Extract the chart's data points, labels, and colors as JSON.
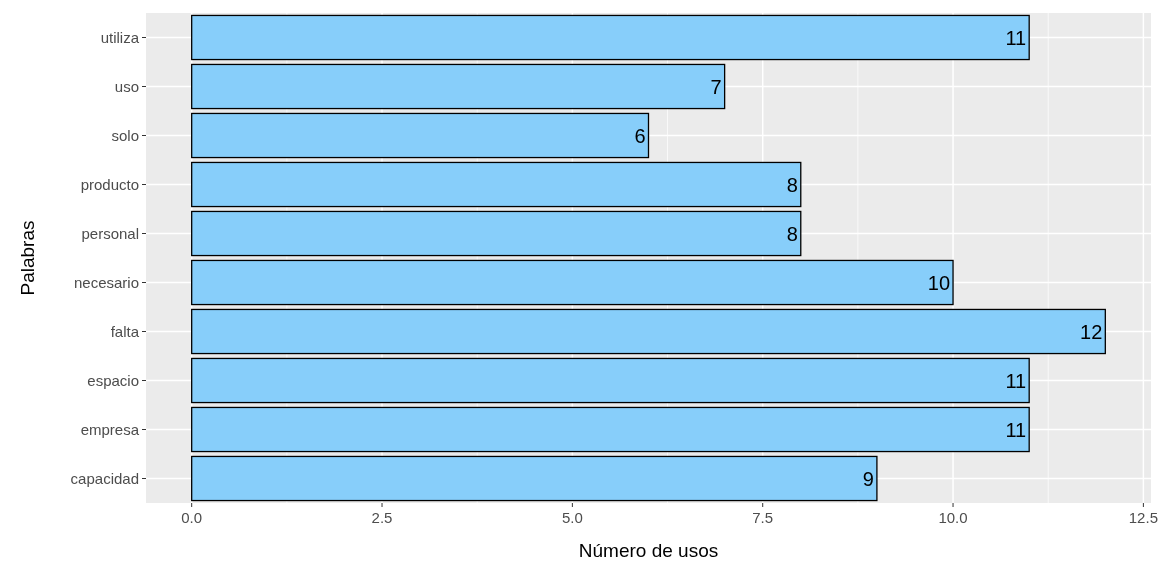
{
  "chart_data": {
    "type": "bar",
    "orientation": "horizontal",
    "xlabel": "Número de usos",
    "ylabel": "Palabras",
    "categories": [
      "utiliza",
      "uso",
      "solo",
      "producto",
      "personal",
      "necesario",
      "falta",
      "espacio",
      "empresa",
      "capacidad"
    ],
    "values": [
      11,
      7,
      6,
      8,
      8,
      10,
      12,
      11,
      11,
      9
    ],
    "color": "#87cefa",
    "data_labels": true,
    "grid": true,
    "xlim": [
      -0.6,
      12.6
    ],
    "xticks": [
      {
        "value": 0,
        "label": "0.0"
      },
      {
        "value": 2.5,
        "label": "2.5"
      },
      {
        "value": 5,
        "label": "5.0"
      },
      {
        "value": 7.5,
        "label": "7.5"
      },
      {
        "value": 10,
        "label": "10.0"
      },
      {
        "value": 12.5,
        "label": "12.5"
      }
    ]
  }
}
